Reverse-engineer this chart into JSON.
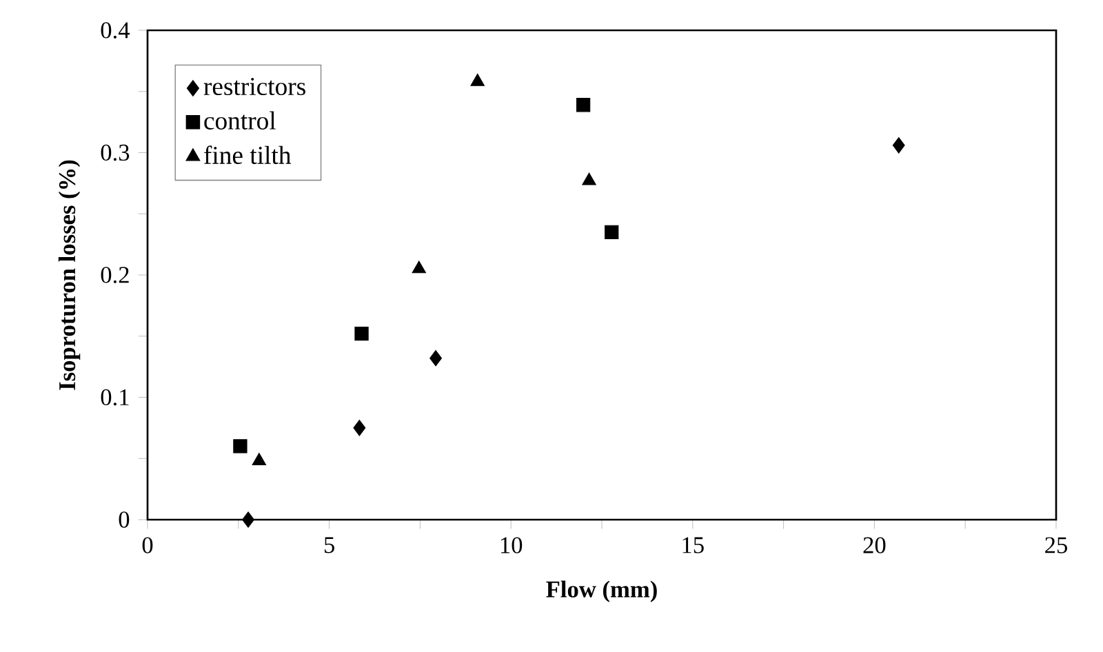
{
  "chart_data": {
    "type": "scatter",
    "xlabel": "Flow (mm)",
    "ylabel": "Isoproturon losses (%)",
    "xlim": [
      0,
      25
    ],
    "ylim": [
      0,
      0.4
    ],
    "xticks": [
      0,
      {
        "value": 2.5,
        "label": null
      },
      5,
      {
        "value": 7.5,
        "label": null
      },
      10,
      {
        "value": 12.5,
        "label": null
      },
      15,
      {
        "value": 17.5,
        "label": null
      },
      20,
      {
        "value": 22.5,
        "label": null
      },
      25
    ],
    "yticks": [
      0,
      {
        "value": 0.05,
        "label": null
      },
      0.1,
      {
        "value": 0.15,
        "label": null
      },
      0.2,
      {
        "value": 0.25,
        "label": null
      },
      0.3,
      {
        "value": 0.35,
        "label": null
      },
      0.4
    ],
    "grid": false,
    "legend": "top left",
    "series": [
      {
        "name": "restrictors",
        "color": "#000000",
        "marker": "diamond",
        "x": [
          2.77,
          5.83,
          7.93,
          20.67
        ],
        "values": [
          0.0,
          0.075,
          0.132,
          0.306
        ]
      },
      {
        "name": "control",
        "color": "#000000",
        "marker": "square",
        "x": [
          2.55,
          5.89,
          11.99,
          12.77
        ],
        "values": [
          0.06,
          0.152,
          0.339,
          0.235
        ]
      },
      {
        "name": "fine tilth",
        "color": "#000000",
        "marker": "triangle",
        "x": [
          3.07,
          7.47,
          9.08,
          12.15
        ],
        "values": [
          0.048,
          0.205,
          0.358,
          0.277
        ]
      }
    ]
  }
}
